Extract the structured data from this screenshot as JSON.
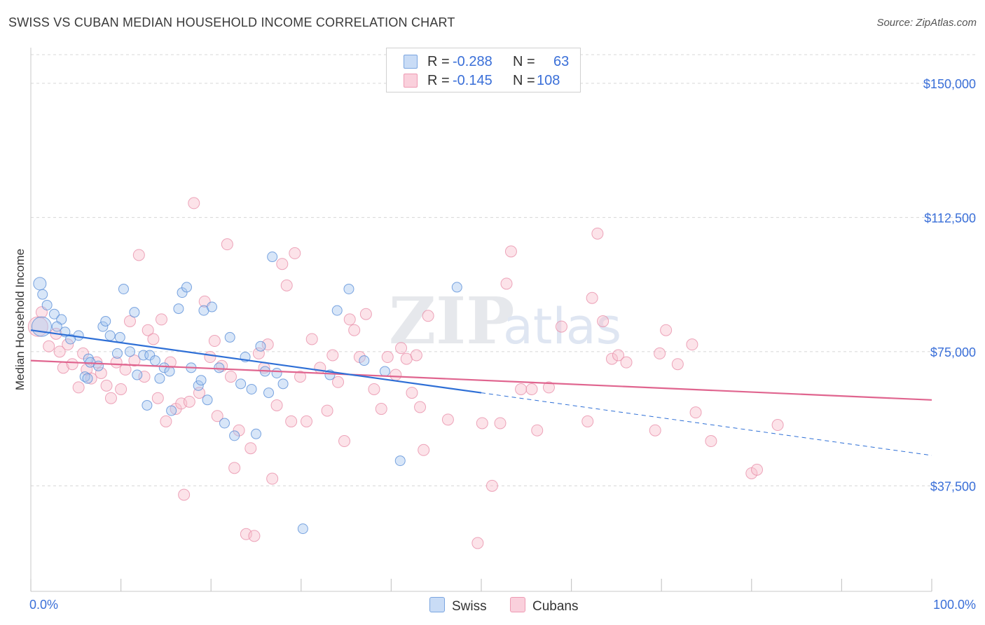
{
  "title": "SWISS VS CUBAN MEDIAN HOUSEHOLD INCOME CORRELATION CHART",
  "source": "Source: ZipAtlas.com",
  "watermark": {
    "zip": "ZIP",
    "atlas": "atlas"
  },
  "legend": {
    "swiss": {
      "r_label": "R =",
      "r_value": "-0.288",
      "n_label": "N =",
      "n_value": "63",
      "color": "#a8c8f0"
    },
    "cubans": {
      "r_label": "R =",
      "r_value": "-0.145",
      "n_label": "N =",
      "n_value": "108",
      "color": "#f5b8c8"
    }
  },
  "bottom_legend": [
    "Swiss",
    "Cubans"
  ],
  "colors": {
    "swiss_fill": "#a8c8f0",
    "swiss_stroke": "#5a8fd8",
    "swiss_line": "#2e6fd6",
    "cubans_fill": "#f8c0cf",
    "cubans_stroke": "#e890aa",
    "cubans_line": "#e0658f",
    "accent_text": "#3a6fd8",
    "grid": "#d8d8d8"
  },
  "chart_data": {
    "type": "scatter",
    "xlabel": "",
    "ylabel": "Median Household Income",
    "xlim": [
      0,
      100
    ],
    "ylim": [
      8000,
      158000
    ],
    "x_tick_labels": [
      "0.0%",
      "100.0%"
    ],
    "y_ticks": [
      37500,
      75000,
      112500,
      150000
    ],
    "y_tick_labels": [
      "$37,500",
      "$75,000",
      "$112,500",
      "$150,000"
    ],
    "series": [
      {
        "name": "Swiss",
        "trend": {
          "x0": 0,
          "y0": 81000,
          "x1": 50,
          "y1": 63500,
          "dashed_to_x": 100,
          "dashed_to_y": 46000
        },
        "points": [
          [
            1.2,
            82,
            82000
          ],
          [
            1.0,
            9,
            94000
          ],
          [
            1.3,
            7,
            91000
          ],
          [
            1.8,
            7,
            88000
          ],
          [
            2.6,
            7,
            85500
          ],
          [
            3.4,
            7,
            84000
          ],
          [
            2.9,
            7,
            82000
          ],
          [
            3.8,
            7,
            80500
          ],
          [
            5.3,
            7,
            79500
          ],
          [
            4.4,
            7,
            78500
          ],
          [
            6.4,
            7,
            73000
          ],
          [
            6.6,
            7,
            72000
          ],
          [
            6.0,
            7,
            68000
          ],
          [
            6.3,
            7,
            67500
          ],
          [
            7.5,
            7,
            71000
          ],
          [
            8.0,
            7,
            82000
          ],
          [
            8.3,
            7,
            83500
          ],
          [
            8.8,
            7,
            79500
          ],
          [
            9.6,
            7,
            74500
          ],
          [
            9.9,
            7,
            79000
          ],
          [
            10.3,
            7,
            92500
          ],
          [
            11.0,
            7,
            75000
          ],
          [
            11.5,
            7,
            86000
          ],
          [
            11.8,
            7,
            68500
          ],
          [
            12.5,
            7,
            74000
          ],
          [
            12.9,
            7,
            60000
          ],
          [
            13.2,
            7,
            74000
          ],
          [
            13.8,
            7,
            72500
          ],
          [
            14.3,
            7,
            67500
          ],
          [
            14.8,
            7,
            70500
          ],
          [
            15.4,
            7,
            69500
          ],
          [
            15.6,
            7,
            58500
          ],
          [
            16.4,
            7,
            87000
          ],
          [
            16.8,
            7,
            91500
          ],
          [
            17.3,
            7,
            93000
          ],
          [
            17.8,
            7,
            70500
          ],
          [
            18.6,
            7,
            65500
          ],
          [
            18.9,
            7,
            67000
          ],
          [
            19.2,
            7,
            86500
          ],
          [
            19.6,
            7,
            61500
          ],
          [
            20.1,
            7,
            87500
          ],
          [
            20.9,
            7,
            70500
          ],
          [
            21.5,
            7,
            55000
          ],
          [
            22.1,
            7,
            79000
          ],
          [
            22.6,
            7,
            51500
          ],
          [
            23.3,
            7,
            66000
          ],
          [
            23.8,
            7,
            73500
          ],
          [
            24.5,
            7,
            64500
          ],
          [
            25.0,
            7,
            52000
          ],
          [
            25.5,
            7,
            76500
          ],
          [
            26.0,
            7,
            69500
          ],
          [
            26.4,
            7,
            63500
          ],
          [
            26.8,
            7,
            101500
          ],
          [
            27.3,
            7,
            69000
          ],
          [
            28.0,
            7,
            66000
          ],
          [
            30.2,
            7,
            25500
          ],
          [
            33.2,
            7,
            68500
          ],
          [
            34.0,
            7,
            86500
          ],
          [
            35.3,
            7,
            92500
          ],
          [
            37.0,
            7,
            72500
          ],
          [
            39.3,
            7,
            69500
          ],
          [
            41.0,
            7,
            44500
          ],
          [
            47.3,
            7,
            93000
          ]
        ]
      },
      {
        "name": "Cubans",
        "trend": {
          "x0": 0,
          "y0": 72500,
          "x1": 100,
          "y1": 61500
        },
        "points": [
          [
            0.8,
            16,
            82000
          ],
          [
            1.2,
            8,
            86000
          ],
          [
            2.0,
            8,
            76500
          ],
          [
            2.8,
            8,
            80000
          ],
          [
            3.2,
            8,
            75000
          ],
          [
            3.6,
            8,
            70500
          ],
          [
            4.1,
            8,
            77000
          ],
          [
            4.6,
            8,
            71500
          ],
          [
            5.3,
            8,
            65000
          ],
          [
            5.8,
            8,
            74500
          ],
          [
            6.2,
            8,
            70000
          ],
          [
            6.7,
            8,
            67500
          ],
          [
            7.3,
            8,
            72000
          ],
          [
            7.8,
            8,
            69000
          ],
          [
            8.4,
            8,
            65500
          ],
          [
            8.9,
            8,
            62000
          ],
          [
            9.5,
            8,
            72000
          ],
          [
            10.0,
            8,
            64500
          ],
          [
            10.5,
            8,
            70000
          ],
          [
            11.0,
            8,
            83500
          ],
          [
            11.5,
            8,
            72500
          ],
          [
            12.0,
            8,
            102000
          ],
          [
            12.6,
            8,
            68000
          ],
          [
            13.0,
            8,
            81000
          ],
          [
            13.6,
            8,
            78500
          ],
          [
            14.1,
            8,
            62000
          ],
          [
            14.5,
            8,
            84000
          ],
          [
            15.0,
            8,
            55500
          ],
          [
            15.5,
            8,
            72000
          ],
          [
            16.1,
            8,
            59000
          ],
          [
            16.7,
            8,
            60500
          ],
          [
            17.0,
            8,
            35000
          ],
          [
            17.6,
            8,
            61000
          ],
          [
            18.1,
            8,
            116500
          ],
          [
            18.7,
            8,
            63500
          ],
          [
            19.3,
            8,
            89000
          ],
          [
            19.9,
            8,
            73500
          ],
          [
            20.4,
            8,
            78000
          ],
          [
            20.7,
            8,
            57000
          ],
          [
            21.2,
            8,
            71000
          ],
          [
            21.8,
            8,
            105000
          ],
          [
            22.2,
            8,
            68000
          ],
          [
            22.6,
            8,
            42500
          ],
          [
            23.1,
            8,
            53000
          ],
          [
            23.9,
            8,
            24000
          ],
          [
            24.4,
            8,
            48000
          ],
          [
            24.8,
            8,
            23500
          ],
          [
            25.3,
            8,
            74500
          ],
          [
            25.9,
            8,
            70500
          ],
          [
            26.3,
            8,
            77000
          ],
          [
            26.8,
            8,
            39500
          ],
          [
            27.3,
            8,
            60000
          ],
          [
            27.9,
            8,
            99500
          ],
          [
            28.4,
            8,
            93500
          ],
          [
            28.9,
            8,
            55500
          ],
          [
            29.3,
            8,
            102500
          ],
          [
            29.9,
            8,
            68000
          ],
          [
            30.6,
            8,
            55500
          ],
          [
            31.2,
            8,
            78500
          ],
          [
            32.1,
            8,
            70500
          ],
          [
            32.9,
            8,
            58500
          ],
          [
            33.5,
            8,
            74000
          ],
          [
            34.1,
            8,
            66500
          ],
          [
            34.8,
            8,
            50000
          ],
          [
            35.4,
            8,
            84000
          ],
          [
            35.9,
            8,
            81000
          ],
          [
            36.5,
            8,
            73500
          ],
          [
            37.2,
            8,
            85500
          ],
          [
            38.1,
            8,
            64500
          ],
          [
            38.9,
            8,
            59000
          ],
          [
            39.6,
            8,
            73500
          ],
          [
            40.5,
            8,
            68500
          ],
          [
            41.1,
            8,
            76000
          ],
          [
            41.7,
            8,
            73000
          ],
          [
            42.3,
            8,
            63500
          ],
          [
            42.8,
            8,
            74000
          ],
          [
            43.2,
            8,
            59500
          ],
          [
            43.6,
            8,
            47500
          ],
          [
            44.1,
            8,
            85000
          ],
          [
            46.3,
            8,
            56000
          ],
          [
            49.6,
            8,
            21500
          ],
          [
            50.1,
            8,
            55000
          ],
          [
            51.2,
            8,
            37500
          ],
          [
            52.1,
            8,
            55000
          ],
          [
            52.8,
            8,
            94000
          ],
          [
            53.3,
            8,
            103000
          ],
          [
            54.4,
            8,
            64500
          ],
          [
            55.6,
            8,
            64500
          ],
          [
            56.2,
            8,
            53000
          ],
          [
            57.5,
            8,
            65000
          ],
          [
            58.9,
            8,
            82000
          ],
          [
            61.8,
            8,
            55500
          ],
          [
            62.3,
            8,
            90000
          ],
          [
            62.9,
            8,
            108000
          ],
          [
            63.5,
            8,
            83500
          ],
          [
            64.5,
            8,
            73000
          ],
          [
            65.2,
            8,
            74000
          ],
          [
            66.1,
            8,
            72000
          ],
          [
            69.3,
            8,
            53000
          ],
          [
            69.8,
            8,
            74500
          ],
          [
            70.5,
            8,
            81000
          ],
          [
            71.8,
            8,
            71500
          ],
          [
            73.4,
            8,
            77000
          ],
          [
            73.8,
            8,
            58000
          ],
          [
            75.5,
            8,
            50000
          ],
          [
            80.0,
            8,
            41000
          ],
          [
            80.6,
            8,
            42000
          ],
          [
            82.9,
            8,
            54500
          ]
        ]
      }
    ]
  }
}
